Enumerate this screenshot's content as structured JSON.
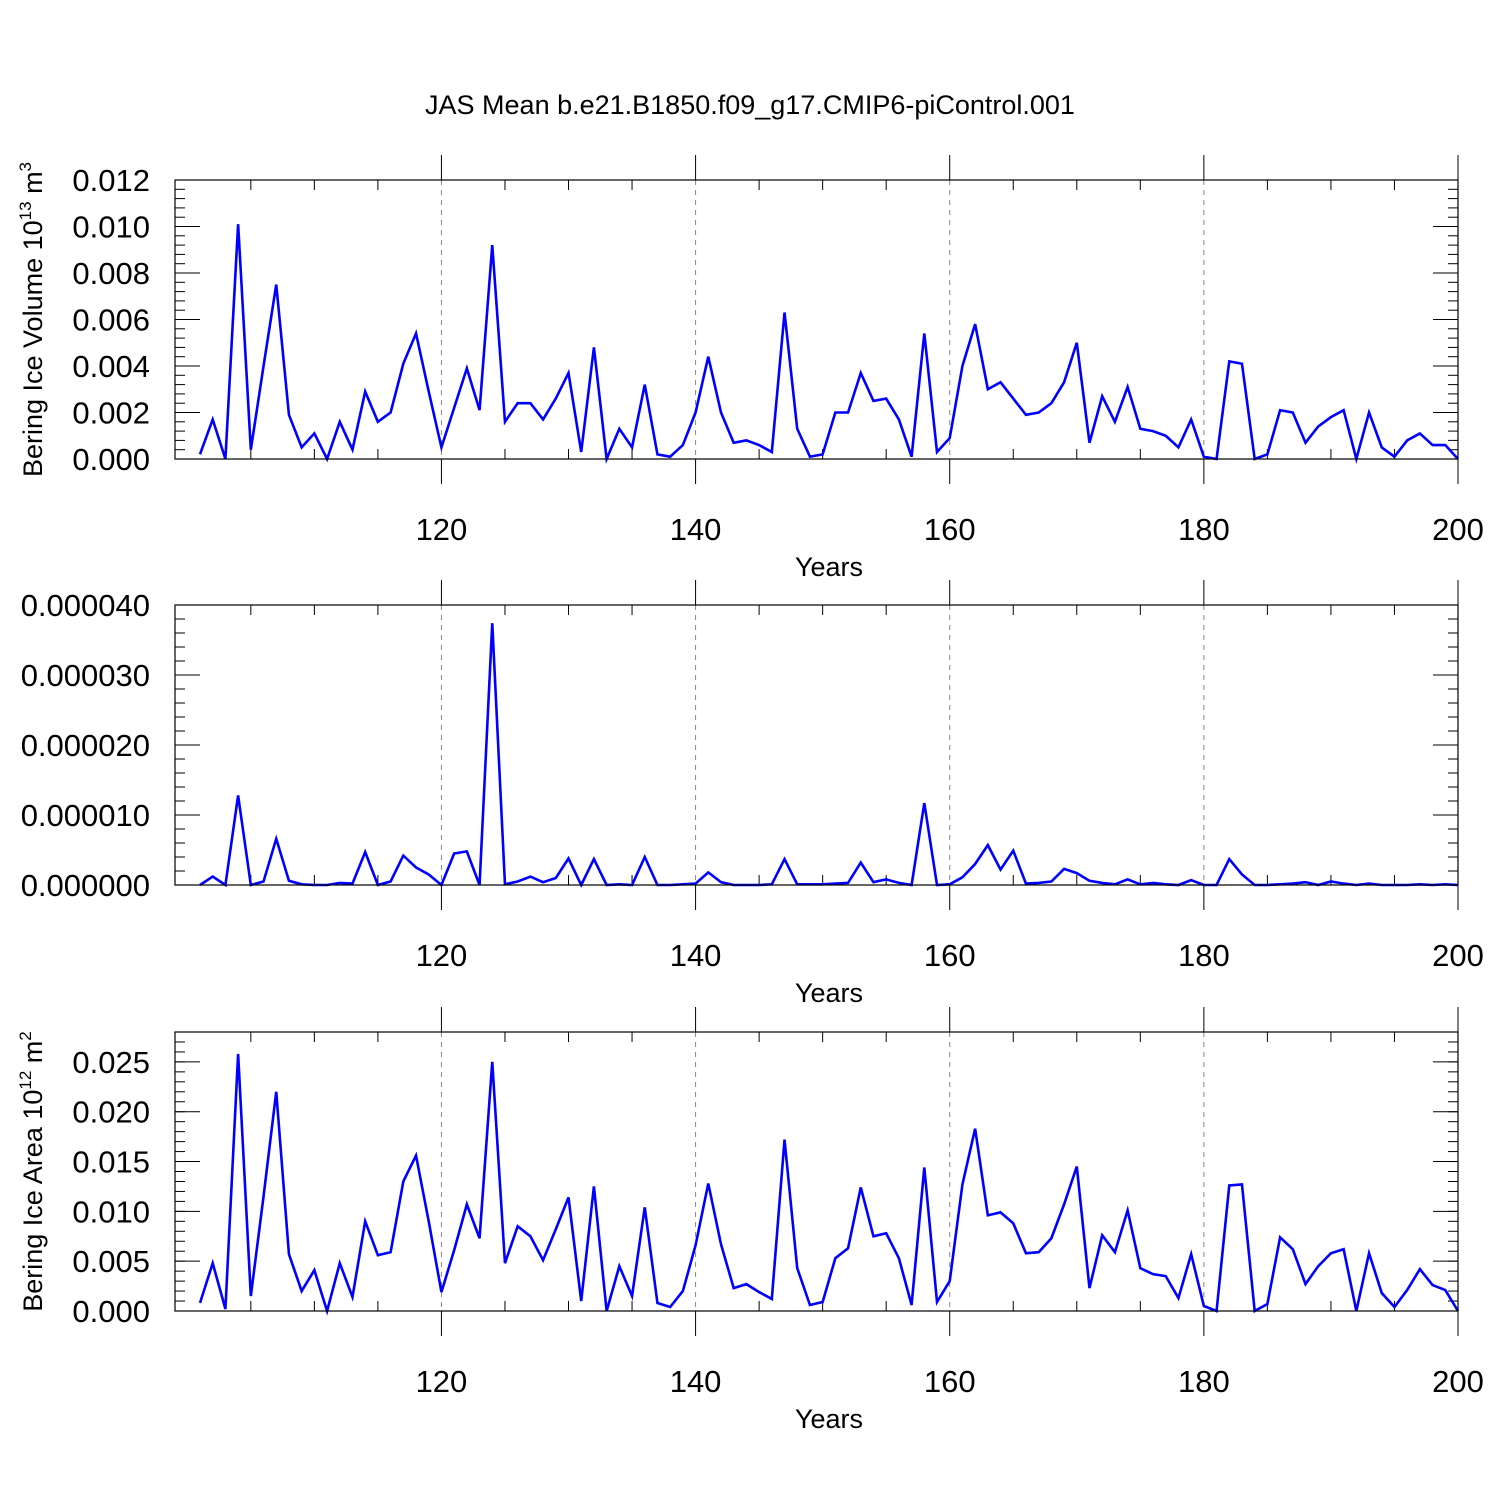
{
  "title": "JAS Mean b.e21.B1850.f09_g17.CMIP6-piControl.001",
  "chart_data": [
    {
      "type": "line",
      "ylabel_main": "Bering Ice Volume 10",
      "ylabel_exp": "13",
      "ylabel_unit": " m",
      "ylabel_unit_exp": "3",
      "xlabel": "Years",
      "xlim": [
        101,
        200
      ],
      "ylim": [
        0,
        0.012
      ],
      "yticks": [
        "0.000",
        "0.002",
        "0.004",
        "0.006",
        "0.008",
        "0.010",
        "0.012"
      ],
      "xticks": [
        "120",
        "140",
        "160",
        "180",
        "200"
      ],
      "grid": "vertical dashed at major x ticks",
      "color": "#0000ff",
      "x_start": 101,
      "values": [
        0.0002,
        0.0017,
        0.0,
        0.0101,
        0.0004,
        0.004,
        0.0075,
        0.0019,
        0.0005,
        0.0011,
        0.0,
        0.0016,
        0.0004,
        0.0029,
        0.0016,
        0.002,
        0.0041,
        0.0054,
        0.0029,
        0.0005,
        0.0022,
        0.0039,
        0.0021,
        0.0092,
        0.0016,
        0.0024,
        0.0024,
        0.0017,
        0.0026,
        0.0037,
        0.0003,
        0.0048,
        0.0,
        0.0013,
        0.0005,
        0.0032,
        0.0002,
        0.0001,
        0.0006,
        0.002,
        0.0044,
        0.002,
        0.0007,
        0.0008,
        0.0006,
        0.0003,
        0.0063,
        0.0013,
        0.0001,
        0.0002,
        0.002,
        0.002,
        0.0037,
        0.0025,
        0.0026,
        0.0017,
        0.0001,
        0.0054,
        0.0003,
        0.0009,
        0.004,
        0.0058,
        0.003,
        0.0033,
        0.0026,
        0.0019,
        0.002,
        0.0024,
        0.0033,
        0.005,
        0.0007,
        0.0027,
        0.0016,
        0.0031,
        0.0013,
        0.0012,
        0.001,
        0.0005,
        0.0017,
        0.0001,
        0.0,
        0.0042,
        0.0041,
        0.0,
        0.0002,
        0.0021,
        0.002,
        0.0007,
        0.0014,
        0.0018,
        0.0021,
        0.0,
        0.002,
        0.0005,
        0.0001,
        0.0008,
        0.0011,
        0.0006,
        0.0006,
        0.0
      ]
    },
    {
      "type": "line",
      "xlabel": "Years",
      "xlim": [
        101,
        200
      ],
      "ylim": [
        0,
        4e-05
      ],
      "yticks": [
        "0.000000",
        "0.000010",
        "0.000020",
        "0.000030",
        "0.000040"
      ],
      "xticks": [
        "120",
        "140",
        "160",
        "180",
        "200"
      ],
      "grid": "vertical dashed at major x ticks",
      "color": "#0000ff",
      "x_start": 101,
      "values": [
        0.0,
        1.2e-06,
        0.0,
        1.28e-05,
        0.0,
        5e-07,
        6.6e-06,
        6e-07,
        1e-07,
        0.0,
        0.0,
        3e-07,
        2e-07,
        4.7e-06,
        0.0,
        5e-07,
        4.2e-06,
        2.5e-06,
        1.5e-06,
        0.0,
        4.5e-06,
        4.8e-06,
        0.0,
        3.74e-05,
        1e-07,
        5e-07,
        1.2e-06,
        4e-07,
        1e-06,
        3.8e-06,
        0.0,
        3.7e-06,
        0.0,
        1e-07,
        0.0,
        4e-06,
        0.0,
        0.0,
        1e-07,
        2e-07,
        1.8e-06,
        4e-07,
        0.0,
        0.0,
        0.0,
        1e-07,
        3.7e-06,
        1e-07,
        1e-07,
        1e-07,
        2e-07,
        3e-07,
        3.2e-06,
        4e-07,
        8e-07,
        3e-07,
        0.0,
        1.17e-05,
        0.0,
        1e-07,
        1.1e-06,
        3e-06,
        5.7e-06,
        2.2e-06,
        4.9e-06,
        2e-07,
        3e-07,
        5e-07,
        2.3e-06,
        1.7e-06,
        6e-07,
        3e-07,
        1e-07,
        8e-07,
        1e-07,
        3e-07,
        1e-07,
        0.0,
        7e-07,
        0.0,
        0.0,
        3.7e-06,
        1.5e-06,
        0.0,
        0.0,
        1e-07,
        2e-07,
        4e-07,
        0.0,
        5e-07,
        2e-07,
        0.0,
        2e-07,
        0.0,
        0.0,
        0.0,
        1e-07,
        0.0,
        1e-07,
        0.0
      ]
    },
    {
      "type": "line",
      "ylabel_main": "Bering Ice Area 10",
      "ylabel_exp": "12",
      "ylabel_unit": " m",
      "ylabel_unit_exp": "2",
      "xlabel": "Years",
      "xlim": [
        101,
        200
      ],
      "ylim": [
        0,
        0.028
      ],
      "yticks": [
        "0.000",
        "0.005",
        "0.010",
        "0.015",
        "0.020",
        "0.025"
      ],
      "xticks": [
        "120",
        "140",
        "160",
        "180",
        "200"
      ],
      "grid": "vertical dashed at major x ticks",
      "color": "#0000ff",
      "x_start": 101,
      "values": [
        0.0008,
        0.0048,
        0.0002,
        0.0258,
        0.0015,
        0.0115,
        0.022,
        0.0057,
        0.002,
        0.0041,
        0.0,
        0.0048,
        0.0014,
        0.009,
        0.0056,
        0.0059,
        0.013,
        0.0156,
        0.009,
        0.0019,
        0.0061,
        0.0107,
        0.0073,
        0.025,
        0.0048,
        0.0085,
        0.0075,
        0.0051,
        0.0082,
        0.0114,
        0.001,
        0.0125,
        0.0,
        0.0045,
        0.0015,
        0.0104,
        0.0008,
        0.0004,
        0.002,
        0.0066,
        0.0128,
        0.0067,
        0.0023,
        0.0027,
        0.0019,
        0.0012,
        0.0172,
        0.0043,
        0.0006,
        0.0009,
        0.0053,
        0.0063,
        0.0124,
        0.0075,
        0.0078,
        0.0053,
        0.0006,
        0.0144,
        0.0009,
        0.003,
        0.0127,
        0.0183,
        0.0096,
        0.0099,
        0.0088,
        0.0058,
        0.0059,
        0.0073,
        0.0107,
        0.0145,
        0.0023,
        0.0076,
        0.0059,
        0.0101,
        0.0043,
        0.0037,
        0.0035,
        0.0013,
        0.0057,
        0.0005,
        0.0,
        0.0126,
        0.0127,
        0.0,
        0.0007,
        0.0074,
        0.0062,
        0.0027,
        0.0045,
        0.0058,
        0.0062,
        0.0,
        0.0058,
        0.0018,
        0.0004,
        0.0021,
        0.0042,
        0.0026,
        0.0021,
        0.0
      ]
    }
  ]
}
